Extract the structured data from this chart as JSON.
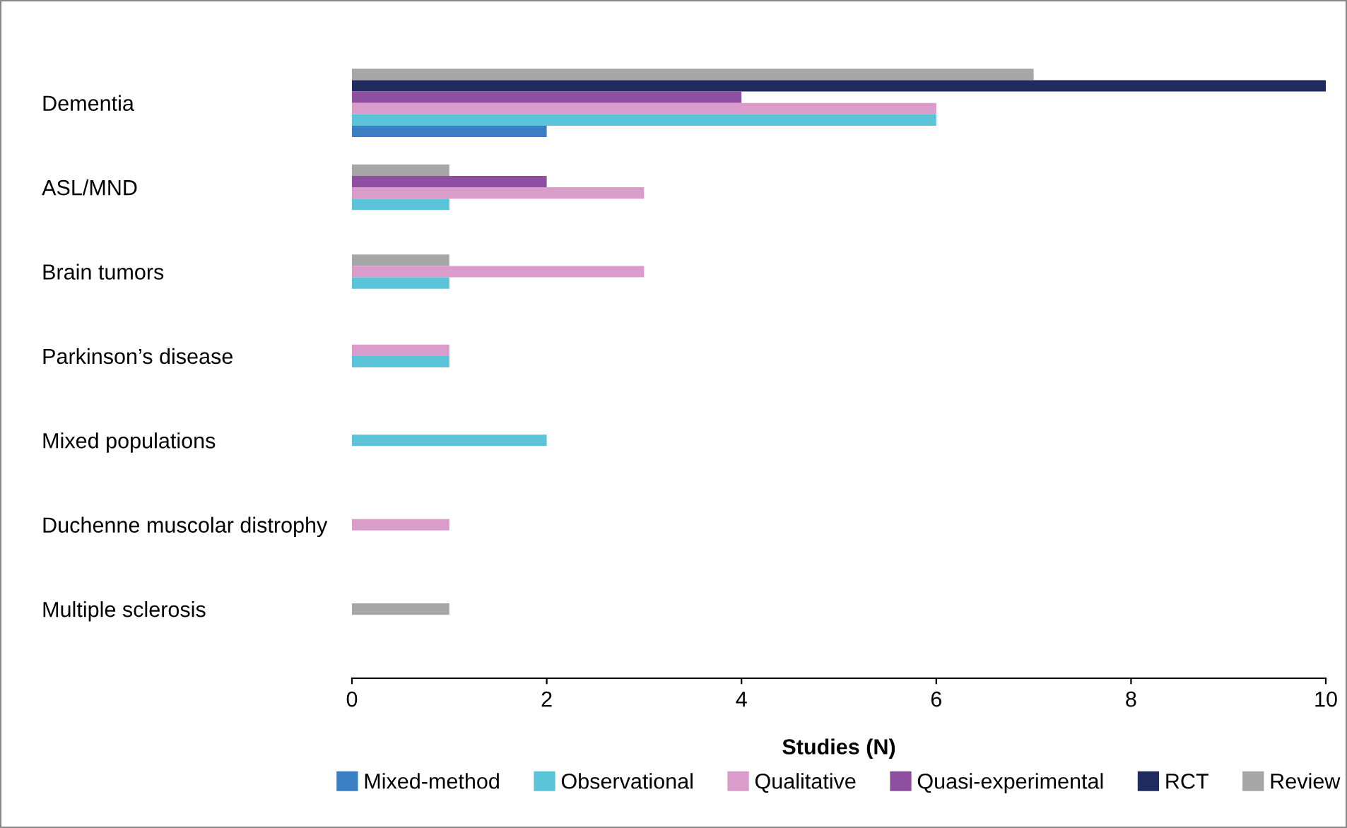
{
  "chart_data": {
    "type": "bar",
    "orientation": "horizontal",
    "xlabel": "Studies (N)",
    "categories": [
      "Dementia",
      "ASL/MND",
      "Brain tumors",
      "Parkinson’s disease",
      "Mixed populations",
      "Duchenne muscolar distrophy",
      "Multiple sclerosis"
    ],
    "series": [
      {
        "name": "Mixed-method",
        "color": "#3a7fc4",
        "values": [
          2,
          null,
          null,
          null,
          null,
          null,
          null
        ]
      },
      {
        "name": "Observational",
        "color": "#5bc4d8",
        "values": [
          6,
          1,
          1,
          1,
          2,
          null,
          null
        ]
      },
      {
        "name": "Qualitative",
        "color": "#d99ccb",
        "values": [
          6,
          3,
          3,
          1,
          null,
          1,
          null
        ]
      },
      {
        "name": "Quasi-experimental",
        "color": "#8e4fa0",
        "values": [
          4,
          2,
          null,
          null,
          null,
          null,
          null
        ]
      },
      {
        "name": "RCT",
        "color": "#1f2a5e",
        "values": [
          10,
          null,
          null,
          null,
          null,
          null,
          null
        ]
      },
      {
        "name": "Review",
        "color": "#a6a6a6",
        "values": [
          7,
          1,
          1,
          null,
          null,
          null,
          1
        ]
      }
    ],
    "xlim": [
      0,
      10
    ],
    "xticks": [
      0,
      2,
      4,
      6,
      8,
      10
    ],
    "grid": false,
    "legend": "bottom"
  }
}
